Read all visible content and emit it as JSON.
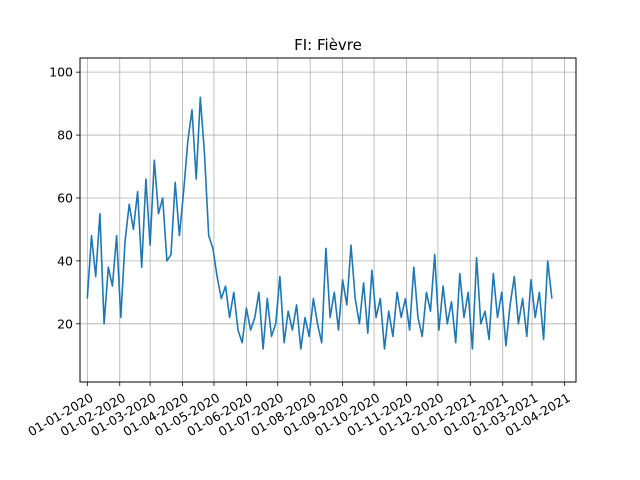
{
  "chart_data": {
    "type": "line",
    "title": "FI: Fièvre",
    "xlabel": "",
    "ylabel": "",
    "x_range": [
      "2019-12-25",
      "2021-04-12"
    ],
    "ylim": [
      1.5,
      104.5
    ],
    "grid": true,
    "line_color": "#1f77b4",
    "x_ticks": [
      "01-01-2020",
      "01-02-2020",
      "01-03-2020",
      "01-04-2020",
      "01-05-2020",
      "01-06-2020",
      "01-07-2020",
      "01-08-2020",
      "01-09-2020",
      "01-10-2020",
      "01-11-2020",
      "01-12-2020",
      "01-01-2021",
      "01-02-2021",
      "01-03-2021",
      "01-04-2021"
    ],
    "y_ticks": [
      20,
      40,
      60,
      80,
      100
    ],
    "series": [
      {
        "x": [
          "2020-01-01",
          "2020-01-05",
          "2020-01-09",
          "2020-01-13",
          "2020-01-17",
          "2020-01-21",
          "2020-01-25",
          "2020-01-29",
          "2020-02-02",
          "2020-02-06",
          "2020-02-10",
          "2020-02-14",
          "2020-02-18",
          "2020-02-22",
          "2020-02-26",
          "2020-03-01",
          "2020-03-05",
          "2020-03-09",
          "2020-03-13",
          "2020-03-17",
          "2020-03-21",
          "2020-03-25",
          "2020-03-29",
          "2020-04-02",
          "2020-04-06",
          "2020-04-10",
          "2020-04-14",
          "2020-04-18",
          "2020-04-22",
          "2020-04-26",
          "2020-04-30",
          "2020-05-04",
          "2020-05-08",
          "2020-05-12",
          "2020-05-16",
          "2020-05-20",
          "2020-05-24",
          "2020-05-28",
          "2020-06-01",
          "2020-06-05",
          "2020-06-09",
          "2020-06-13",
          "2020-06-17",
          "2020-06-21",
          "2020-06-25",
          "2020-06-29",
          "2020-07-03",
          "2020-07-07",
          "2020-07-11",
          "2020-07-15",
          "2020-07-19",
          "2020-07-23",
          "2020-07-27",
          "2020-07-31",
          "2020-08-04",
          "2020-08-08",
          "2020-08-12",
          "2020-08-16",
          "2020-08-20",
          "2020-08-24",
          "2020-08-28",
          "2020-09-01",
          "2020-09-05",
          "2020-09-09",
          "2020-09-13",
          "2020-09-17",
          "2020-09-21",
          "2020-09-25",
          "2020-09-29",
          "2020-10-03",
          "2020-10-07",
          "2020-10-11",
          "2020-10-15",
          "2020-10-19",
          "2020-10-23",
          "2020-10-27",
          "2020-10-31",
          "2020-11-04",
          "2020-11-08",
          "2020-11-12",
          "2020-11-16",
          "2020-11-20",
          "2020-11-24",
          "2020-11-28",
          "2020-12-02",
          "2020-12-06",
          "2020-12-10",
          "2020-12-14",
          "2020-12-18",
          "2020-12-22",
          "2020-12-26",
          "2020-12-30",
          "2021-01-03",
          "2021-01-07",
          "2021-01-11",
          "2021-01-15",
          "2021-01-19",
          "2021-01-23",
          "2021-01-27",
          "2021-01-31",
          "2021-02-04",
          "2021-02-08",
          "2021-02-12",
          "2021-02-16",
          "2021-02-20",
          "2021-02-24",
          "2021-02-28",
          "2021-03-04",
          "2021-03-08",
          "2021-03-12",
          "2021-03-16",
          "2021-03-20"
        ],
        "y": [
          28,
          48,
          35,
          55,
          20,
          38,
          32,
          48,
          22,
          46,
          58,
          50,
          62,
          38,
          66,
          45,
          72,
          55,
          60,
          40,
          42,
          65,
          48,
          62,
          78,
          88,
          66,
          92,
          74,
          48,
          44,
          35,
          28,
          32,
          22,
          30,
          18,
          14,
          25,
          18,
          22,
          30,
          12,
          28,
          16,
          20,
          35,
          14,
          24,
          18,
          26,
          12,
          22,
          16,
          28,
          20,
          14,
          44,
          22,
          30,
          18,
          34,
          26,
          45,
          28,
          20,
          33,
          17,
          37,
          22,
          28,
          12,
          24,
          16,
          30,
          22,
          28,
          18,
          38,
          22,
          16,
          30,
          24,
          42,
          18,
          32,
          20,
          27,
          14,
          36,
          22,
          30,
          12,
          41,
          20,
          24,
          15,
          36,
          22,
          30,
          13,
          26,
          35,
          20,
          28,
          16,
          34,
          22,
          30,
          15,
          40,
          28
        ]
      }
    ]
  }
}
